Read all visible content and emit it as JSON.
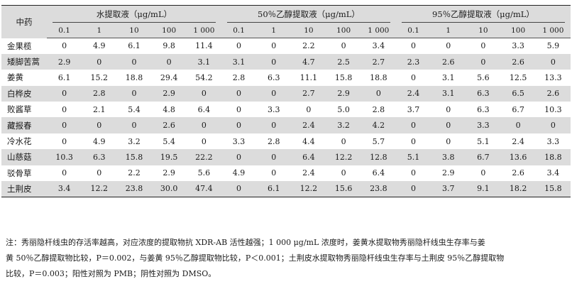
{
  "table": {
    "herb_header": "中药",
    "groups": [
      "水提取液（μg/mL）",
      "50％乙醇提取液（μg/mL）",
      "95％乙醇提取液（μg/mL）"
    ],
    "concentrations": [
      "0.1",
      "1",
      "10",
      "100",
      "1 000"
    ],
    "rows": [
      {
        "herb": "金果榄",
        "values": [
          "0",
          "4.9",
          "6.1",
          "9.8",
          "11.4",
          "0",
          "0",
          "2.2",
          "0",
          "3.4",
          "0",
          "0",
          "0",
          "3.3",
          "5.9"
        ]
      },
      {
        "herb": "矮脚苦蒿",
        "values": [
          "2.9",
          "0",
          "0",
          "0",
          "3.1",
          "3.1",
          "0",
          "4.7",
          "2.5",
          "2.7",
          "2.3",
          "2.6",
          "0",
          "2.6",
          "0"
        ]
      },
      {
        "herb": "姜黄",
        "values": [
          "6.1",
          "15.2",
          "18.8",
          "29.4",
          "54.2",
          "2.8",
          "6.3",
          "11.1",
          "15.8",
          "18.8",
          "0",
          "3.1",
          "5.6",
          "12.5",
          "13.3"
        ]
      },
      {
        "herb": "白桦皮",
        "values": [
          "0",
          "2.8",
          "0",
          "2.9",
          "0",
          "0",
          "0",
          "2.7",
          "2.9",
          "0",
          "2.4",
          "3.1",
          "6.3",
          "6.5",
          "2.6"
        ]
      },
      {
        "herb": "败酱草",
        "values": [
          "0",
          "2.1",
          "5.4",
          "4.8",
          "6.4",
          "0",
          "3.3",
          "0",
          "5.0",
          "2.8",
          "3.7",
          "0",
          "6.3",
          "6.7",
          "10.3"
        ]
      },
      {
        "herb": "藏报春",
        "values": [
          "0",
          "0",
          "0",
          "2.6",
          "0",
          "0",
          "0",
          "2.4",
          "3.2",
          "4.2",
          "0",
          "0",
          "3.3",
          "0",
          "0"
        ]
      },
      {
        "herb": "冷水花",
        "values": [
          "0",
          "4.9",
          "3.2",
          "5.4",
          "0",
          "3.3",
          "2.8",
          "4.4",
          "0",
          "5.7",
          "0",
          "0",
          "5.1",
          "2.4",
          "3.3"
        ]
      },
      {
        "herb": "山慈菇",
        "values": [
          "10.3",
          "6.3",
          "15.8",
          "19.5",
          "22.2",
          "0",
          "0",
          "6.4",
          "12.2",
          "12.8",
          "5.1",
          "3.8",
          "6.7",
          "13.6",
          "18.8"
        ]
      },
      {
        "herb": "驳骨草",
        "values": [
          "0",
          "0",
          "2.2",
          "2.9",
          "5.6",
          "4.9",
          "0",
          "2.4",
          "0",
          "6.4",
          "0",
          "2.9",
          "0",
          "2.6",
          "3.4"
        ]
      },
      {
        "herb": "土荆皮",
        "values": [
          "3.4",
          "12.2",
          "23.8",
          "30.0",
          "47.4",
          "0",
          "6.1",
          "12.2",
          "15.6",
          "23.8",
          "0",
          "3.7",
          "9.1",
          "18.2",
          "15.8"
        ]
      }
    ]
  },
  "note": {
    "line1": "注：秀丽隐杆线虫的存活率越高，对应浓度的提取物抗 XDR-AB 活性越强；1 000 μg/mL 浓度时，姜黄水提取物秀丽隐杆线虫生存率与姜",
    "line2": "黄 50％乙醇提取物比较，P＝0.002，与姜黄 95％乙醇提取物比较，P＜0.001；土荆皮水提取物秀丽隐杆线虫生存率与土荆皮 95％乙醇提取物",
    "line3": "比较，P＝0.003；阳性对照为 PMB；阴性对照为 DMSO。"
  }
}
